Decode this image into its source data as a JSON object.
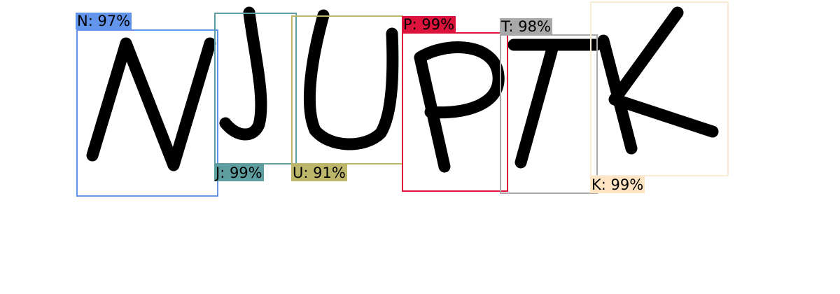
{
  "detections": [
    {
      "id": "n",
      "label": "N: 97%",
      "color": "#6495ED",
      "label_bg": "#6495ED"
    },
    {
      "id": "j",
      "label": "J: 99%",
      "color": "#5F9EA0",
      "label_bg": "#5F9EA0"
    },
    {
      "id": "u",
      "label": "U: 91%",
      "color": "#BDB76B",
      "label_bg": "#BDB76B"
    },
    {
      "id": "p",
      "label": "P: 99%",
      "color": "#DC143C",
      "label_bg": "#DC143C"
    },
    {
      "id": "t",
      "label": "T: 98%",
      "color": "#A9A9A9",
      "label_bg": "#A9A9A9"
    },
    {
      "id": "k",
      "label": "K: 99%",
      "color": "#FAEBD7",
      "label_bg": "#FFE4C4"
    }
  ]
}
